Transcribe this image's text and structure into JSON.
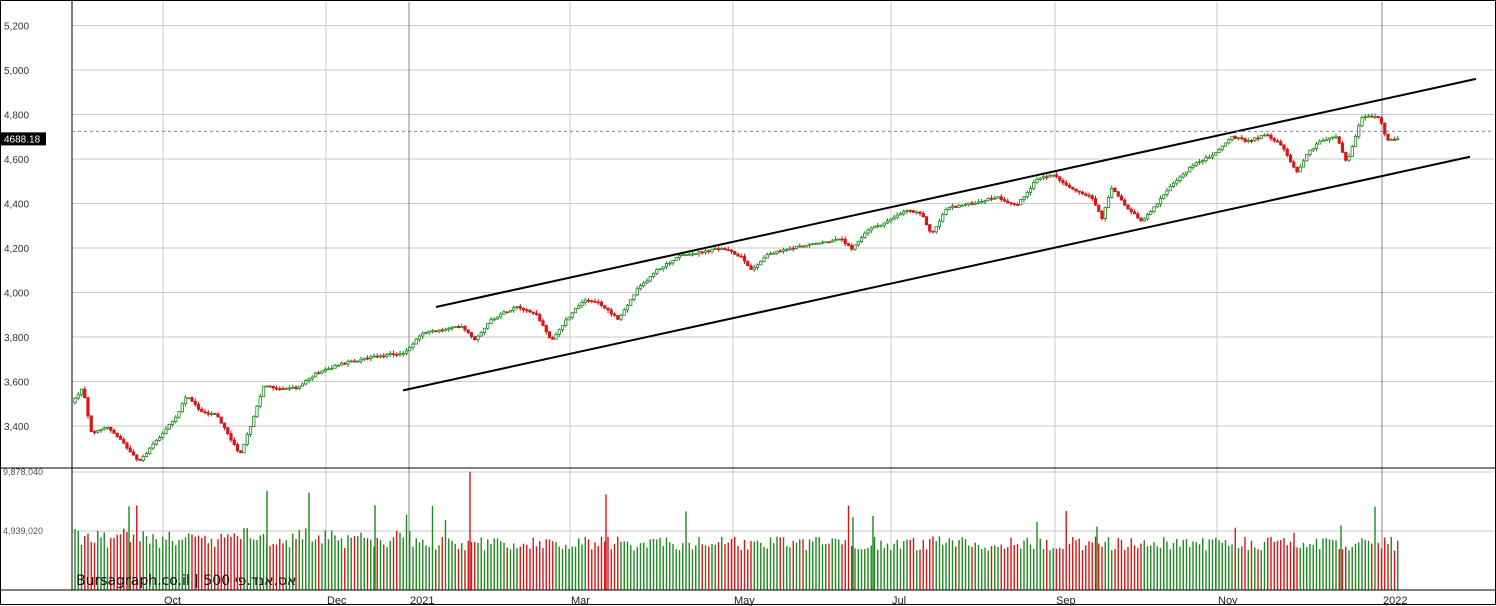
{
  "chart_data": {
    "type": "candlestick",
    "price_axis": {
      "ticks": [
        3400,
        3600,
        3800,
        4000,
        4200,
        4400,
        4600,
        4800,
        5000,
        5200
      ],
      "tick_labels": [
        "3,400",
        "3,600",
        "3,800",
        "4,000",
        "4,200",
        "4,400",
        "4,600",
        "4,800",
        "5,000",
        "5,200"
      ],
      "ylim": [
        3200,
        5300
      ]
    },
    "volume_axis": {
      "tick_labels": [
        "9,878,040",
        "4,939,020"
      ],
      "ticks": [
        9878040,
        4939020
      ]
    },
    "months": [
      "Oct",
      "Dec",
      "2021",
      "Mar",
      "May",
      "Jul",
      "Sep",
      "Nov",
      "2022"
    ],
    "last_price": 4688.18,
    "last_price_label": "4688.18",
    "watermark": "Bursagraph.co.il | 500 אס.אנד.פי",
    "channel": {
      "upper_start_price": 3935,
      "upper_end_price": 4960,
      "lower_start_price": 3560,
      "lower_end_price": 4610
    },
    "grid": true,
    "colors": {
      "up": "#1a8a1a",
      "down": "#d91414",
      "grid": "#c8c8c8",
      "channel": "#000000",
      "frame": "#000000"
    }
  }
}
